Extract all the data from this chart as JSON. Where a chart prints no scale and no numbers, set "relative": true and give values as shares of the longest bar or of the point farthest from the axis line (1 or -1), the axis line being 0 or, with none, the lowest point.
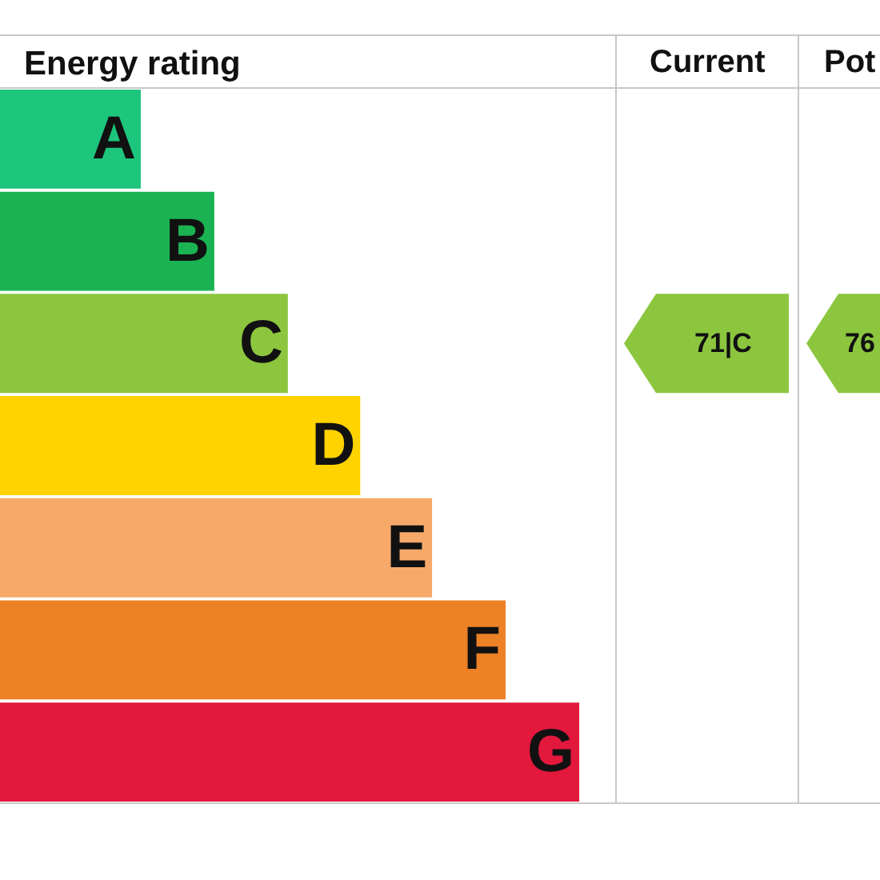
{
  "chart_data": {
    "type": "bar",
    "orientation": "horizontal",
    "relative": true,
    "title": "Energy rating",
    "categories": [
      "A",
      "B",
      "C",
      "D",
      "E",
      "F",
      "G"
    ],
    "values": [
      0.243,
      0.37,
      0.497,
      0.622,
      0.746,
      0.873,
      1
    ],
    "colors": [
      "#1ec57c",
      "#1bb352",
      "#8cc63f",
      "#ffd200",
      "#f7a96a",
      "#ec8126",
      "#e2183d"
    ],
    "annotations": [
      "Current",
      "Pot",
      "71|C",
      "76"
    ]
  }
}
